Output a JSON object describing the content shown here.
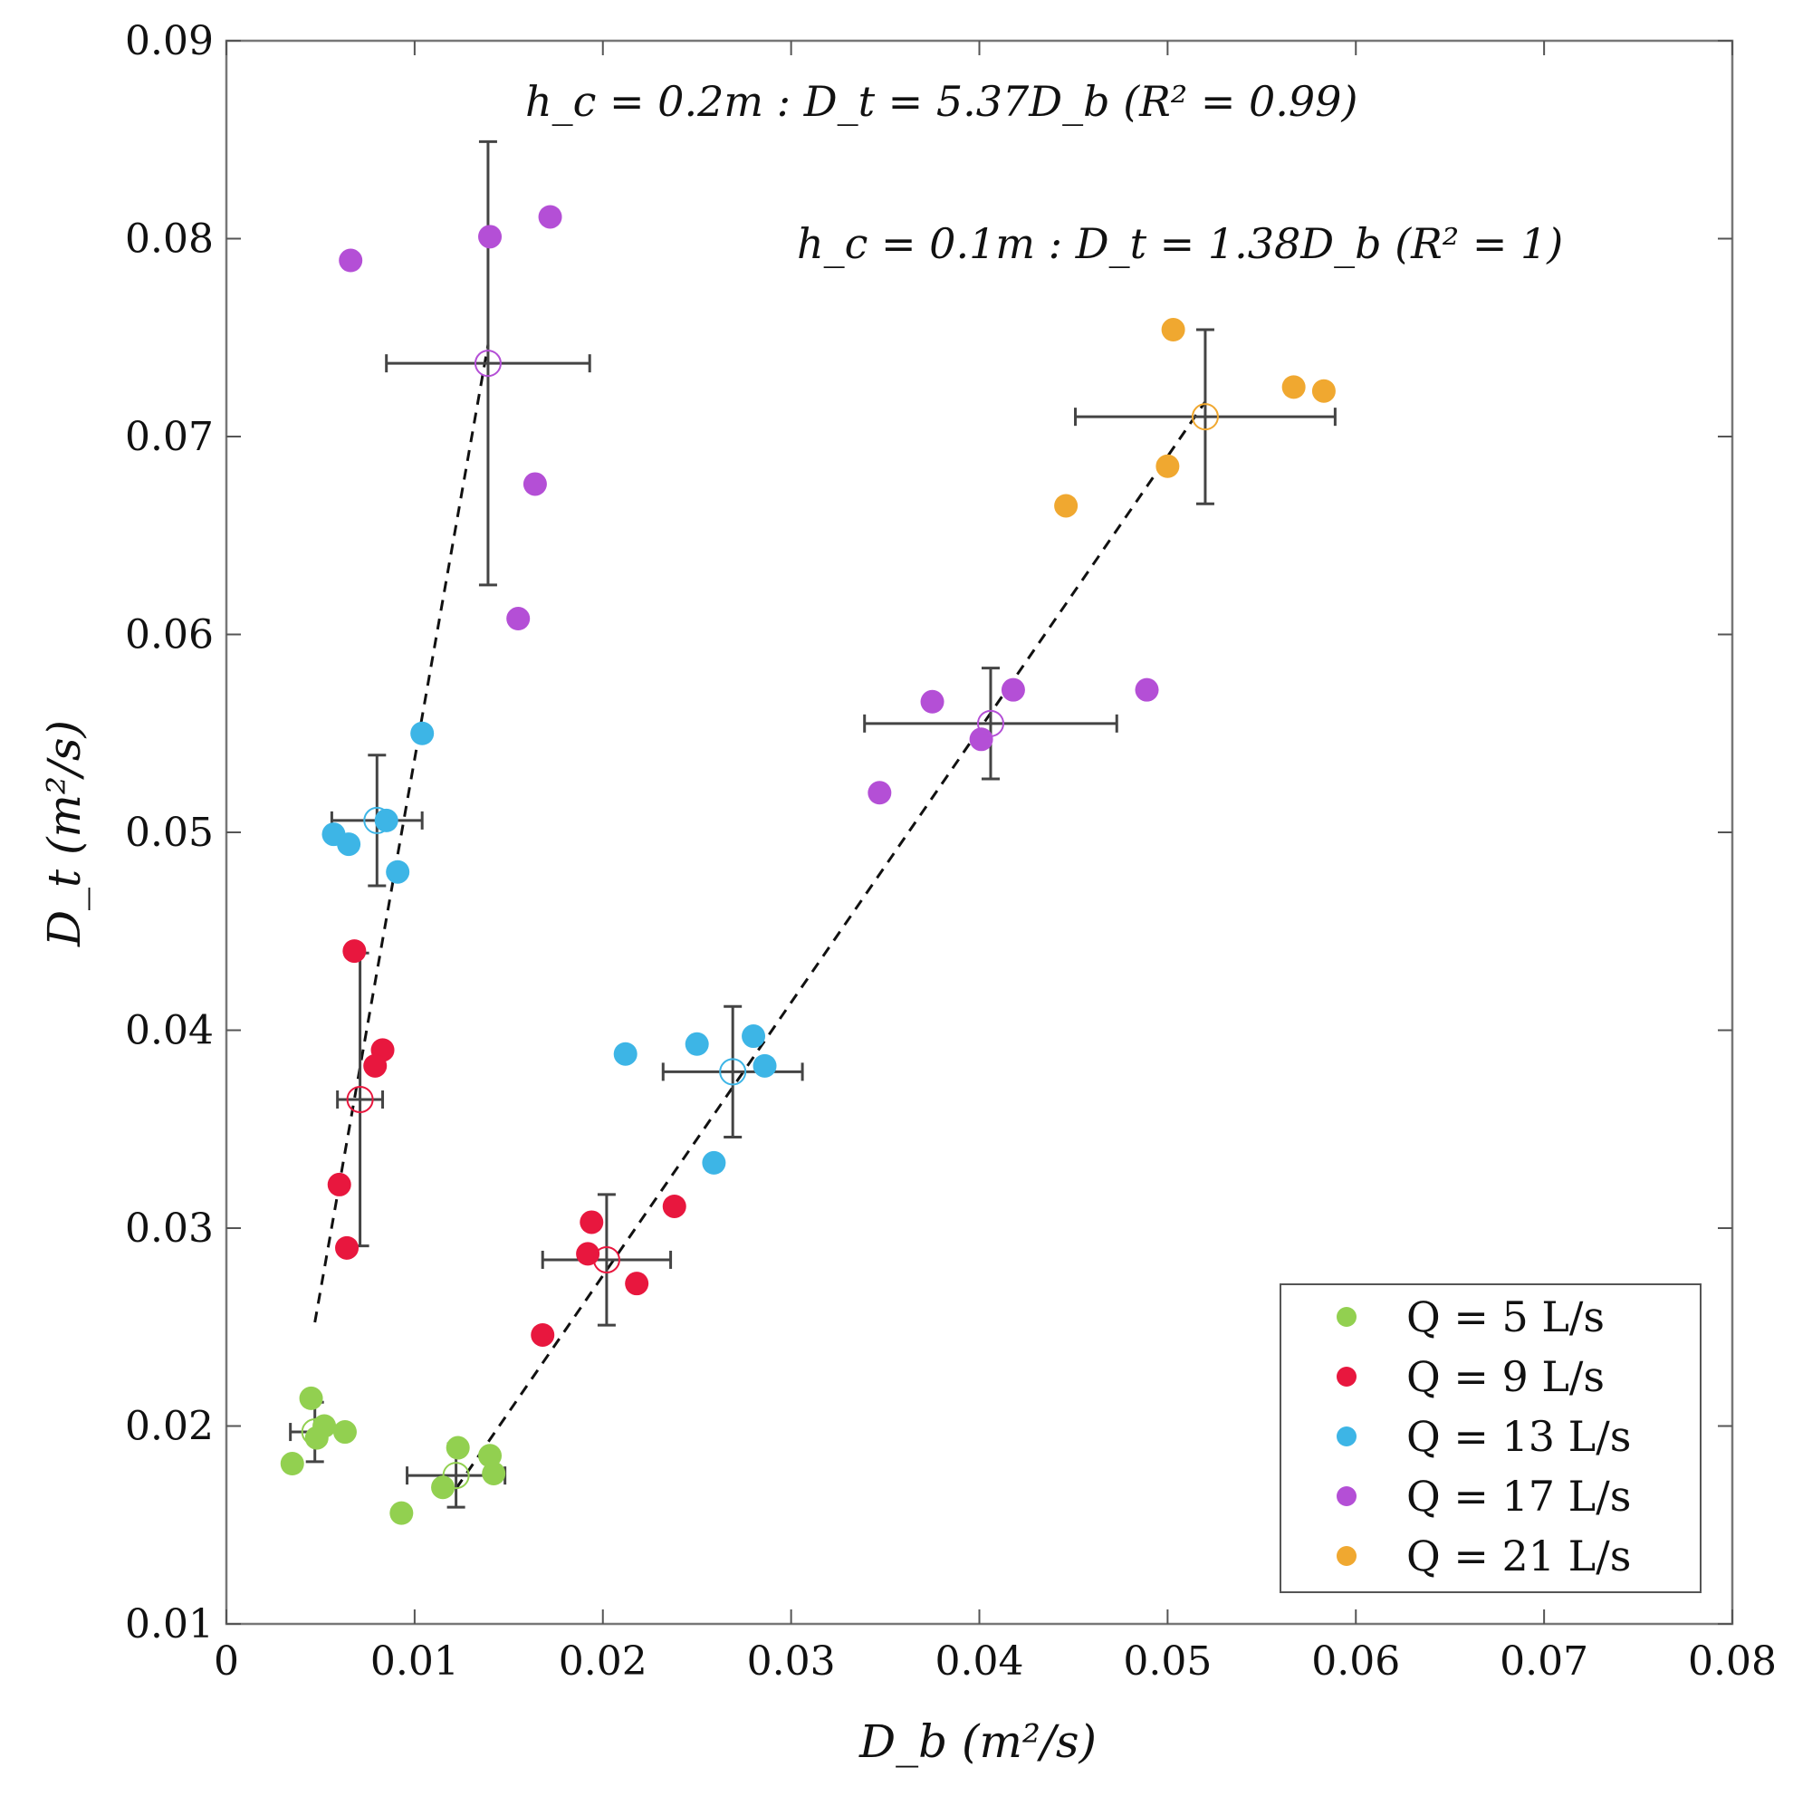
{
  "chart_data": {
    "type": "scatter",
    "xlabel": "D_b   (m²/s)",
    "ylabel": "D_t   (m²/s)",
    "xlim": [
      0,
      0.08
    ],
    "ylim": [
      0.01,
      0.09
    ],
    "xticks": [
      0,
      0.01,
      0.02,
      0.03,
      0.04,
      0.05,
      0.06,
      0.07,
      0.08
    ],
    "xtick_labels": [
      "0",
      "0.01",
      "0.02",
      "0.03",
      "0.04",
      "0.05",
      "0.06",
      "0.07",
      "0.08"
    ],
    "yticks": [
      0.01,
      0.02,
      0.03,
      0.04,
      0.05,
      0.06,
      0.07,
      0.08,
      0.09
    ],
    "ytick_labels": [
      "0.01",
      "0.02",
      "0.03",
      "0.04",
      "0.05",
      "0.06",
      "0.07",
      "0.08",
      "0.09"
    ],
    "grid": false,
    "legend_position": "bottom-right",
    "annotations": [
      "h_c = 0.2m : D_t = 5.37D_b    (R² = 0.99)",
      "h_c = 0.1m : D_t = 1.38D_b    (R² = 1)"
    ],
    "series": [
      {
        "name": "Q = 5 L/s",
        "color": "#92d050",
        "points": [
          [
            0.0045,
            0.0214
          ],
          [
            0.0052,
            0.02
          ],
          [
            0.0048,
            0.0194
          ],
          [
            0.0063,
            0.0197
          ],
          [
            0.0035,
            0.0181
          ],
          [
            0.0123,
            0.0189
          ],
          [
            0.014,
            0.0185
          ],
          [
            0.0142,
            0.0176
          ],
          [
            0.0115,
            0.0169
          ],
          [
            0.0093,
            0.0156
          ]
        ],
        "means": [
          {
            "x": 0.0047,
            "y": 0.0197,
            "xerr": 0.0013,
            "yerr": 0.0015
          },
          {
            "x": 0.0122,
            "y": 0.0175,
            "xerr": 0.0026,
            "yerr": 0.0016
          }
        ]
      },
      {
        "name": "Q = 9 L/s",
        "color": "#e8173e",
        "points": [
          [
            0.0068,
            0.044
          ],
          [
            0.0083,
            0.039
          ],
          [
            0.0079,
            0.0382
          ],
          [
            0.006,
            0.0322
          ],
          [
            0.0064,
            0.029
          ],
          [
            0.0238,
            0.0311
          ],
          [
            0.0194,
            0.0303
          ],
          [
            0.0192,
            0.0287
          ],
          [
            0.0218,
            0.0272
          ],
          [
            0.0168,
            0.0246
          ]
        ],
        "means": [
          {
            "x": 0.0071,
            "y": 0.0365,
            "xerr": 0.0012,
            "yerr": 0.0074
          },
          {
            "x": 0.0202,
            "y": 0.0284,
            "xerr": 0.0034,
            "yerr": 0.0033
          }
        ]
      },
      {
        "name": "Q = 13 L/s",
        "color": "#3db5e6",
        "points": [
          [
            0.0104,
            0.055
          ],
          [
            0.0085,
            0.0506
          ],
          [
            0.0057,
            0.0499
          ],
          [
            0.0065,
            0.0494
          ],
          [
            0.0091,
            0.048
          ],
          [
            0.028,
            0.0397
          ],
          [
            0.025,
            0.0393
          ],
          [
            0.0212,
            0.0388
          ],
          [
            0.0286,
            0.0382
          ],
          [
            0.0259,
            0.0333
          ]
        ],
        "means": [
          {
            "x": 0.008,
            "y": 0.0506,
            "xerr": 0.0024,
            "yerr": 0.0033
          },
          {
            "x": 0.0269,
            "y": 0.0379,
            "xerr": 0.0037,
            "yerr": 0.0033
          }
        ]
      },
      {
        "name": "Q = 17 L/s",
        "color": "#b44fd6",
        "points": [
          [
            0.0172,
            0.0811
          ],
          [
            0.014,
            0.0801
          ],
          [
            0.0066,
            0.0789
          ],
          [
            0.0164,
            0.0676
          ],
          [
            0.0155,
            0.0608
          ],
          [
            0.0418,
            0.0572
          ],
          [
            0.0489,
            0.0572
          ],
          [
            0.0375,
            0.0566
          ],
          [
            0.0401,
            0.0547
          ],
          [
            0.0347,
            0.052
          ]
        ],
        "means": [
          {
            "x": 0.0139,
            "y": 0.0737,
            "xerr": 0.0054,
            "yerr": 0.0112
          },
          {
            "x": 0.0406,
            "y": 0.0555,
            "xerr": 0.0067,
            "yerr": 0.0028
          }
        ]
      },
      {
        "name": "Q = 21 L/s",
        "color": "#f0a830",
        "points": [
          [
            0.0503,
            0.0754
          ],
          [
            0.0567,
            0.0725
          ],
          [
            0.0583,
            0.0723
          ],
          [
            0.05,
            0.0685
          ],
          [
            0.0446,
            0.0665
          ]
        ],
        "means": [
          {
            "x": 0.052,
            "y": 0.071,
            "xerr": 0.0069,
            "yerr": 0.0044
          }
        ]
      }
    ],
    "fit_lines": [
      {
        "name": "h_c = 0.2m",
        "slope": 5.37,
        "x_range": [
          0.0047,
          0.0139
        ]
      },
      {
        "name": "h_c = 0.1m",
        "slope": 1.38,
        "x_range": [
          0.0122,
          0.052
        ]
      }
    ]
  }
}
